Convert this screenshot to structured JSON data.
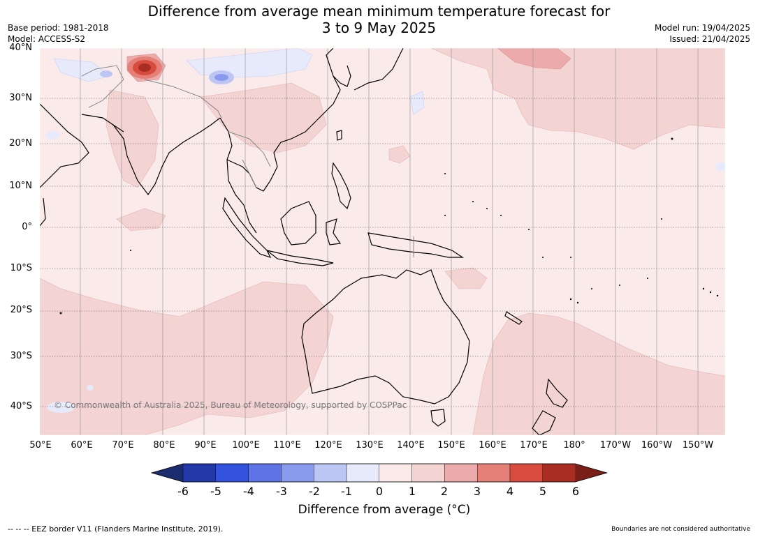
{
  "title_line1": "Difference from average mean minimum temperature forecast for",
  "title_line2": "3 to 9 May 2025",
  "base_period": "Base period: 1981-2018",
  "model": "Model: ACCESS-S2",
  "model_run": "Model run: 19/04/2025",
  "issued": "Issued: 21/04/2025",
  "copyright": "© Commonwealth of Australia 2025, Bureau of Meteorology, supported by COSPPac",
  "lat_labels": [
    "40°N",
    "30°N",
    "20°N",
    "10°N",
    "0°",
    "10°S",
    "20°S",
    "30°S",
    "40°S"
  ],
  "lon_labels": [
    "50°E",
    "60°E",
    "70°E",
    "80°E",
    "90°E",
    "100°E",
    "110°E",
    "120°E",
    "130°E",
    "140°E",
    "150°E",
    "160°E",
    "170°E",
    "180°",
    "170°W",
    "160°W",
    "150°W"
  ],
  "colorbar": {
    "ticks": [
      "-6",
      "-5",
      "-4",
      "-3",
      "-2",
      "-1",
      "0",
      "1",
      "2",
      "3",
      "4",
      "5",
      "6"
    ],
    "colors": [
      "#1b2c6e",
      "#2339a8",
      "#3352e0",
      "#5e74e6",
      "#8a9aed",
      "#bcc5f4",
      "#e7eafb",
      "#fbeaea",
      "#f4d3d3",
      "#ecaaaa",
      "#e58078",
      "#d84c3f",
      "#a92d23",
      "#7a1f18"
    ],
    "label": "Difference from average ($^\\circ$C)",
    "label_shown": "Difference from average (°C)"
  },
  "footer_left": "--  --  -- EEZ border V11 (Flanders Marine Institute, 2019).",
  "footer_right": "Boundaries are not considered authoritative"
}
